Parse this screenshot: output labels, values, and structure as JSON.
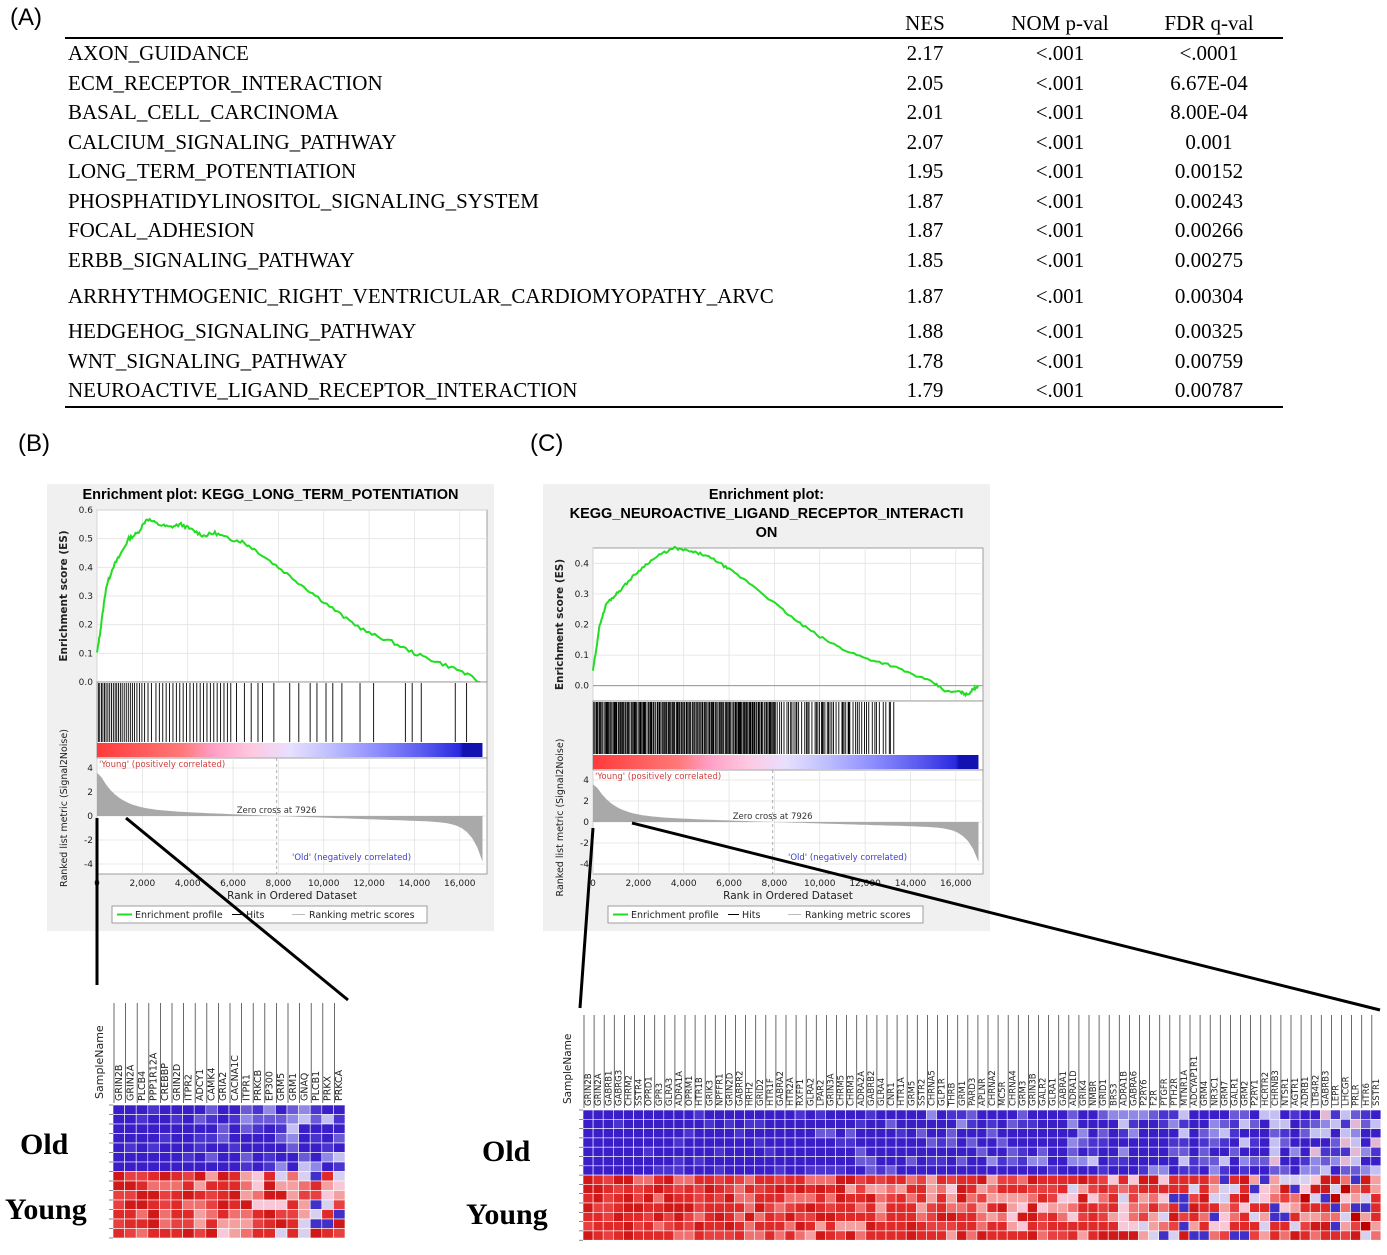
{
  "labels": {
    "a": "(A)",
    "b": "(B)",
    "c": "(C)"
  },
  "table": {
    "headers": [
      "",
      "NES",
      "NOM p-val",
      "FDR q-val"
    ],
    "rows": [
      [
        "AXON_GUIDANCE",
        "2.17",
        "<.001",
        "<.0001"
      ],
      [
        "ECM_RECEPTOR_INTERACTION",
        "2.05",
        "<.001",
        "6.67E-04"
      ],
      [
        "BASAL_CELL_CARCINOMA",
        "2.01",
        "<.001",
        "8.00E-04"
      ],
      [
        "CALCIUM_SIGNALING_PATHWAY",
        "2.07",
        "<.001",
        "0.001"
      ],
      [
        "LONG_TERM_POTENTIATION",
        "1.95",
        "<.001",
        "0.00152"
      ],
      [
        "PHOSPHATIDYLINOSITOL_SIGNALING_SYSTEM",
        "1.87",
        "<.001",
        "0.00243"
      ],
      [
        "FOCAL_ADHESION",
        "1.87",
        "<.001",
        "0.00266"
      ],
      [
        "ERBB_SIGNALING_PATHWAY",
        "1.85",
        "<.001",
        "0.00275"
      ],
      [
        "ARRHYTHMOGENIC_RIGHT_VENTRICULAR_CARDIOMYOPATHY_ARVC",
        "1.87",
        "<.001",
        "0.00304"
      ],
      [
        "HEDGEHOG_SIGNALING_PATHWAY",
        "1.88",
        "<.001",
        "0.00325"
      ],
      [
        "WNT_SIGNALING_PATHWAY",
        "1.78",
        "<.001",
        "0.00759"
      ],
      [
        "NEUROACTIVE_LIGAND_RECEPTOR_INTERACTION",
        "1.79",
        "<.001",
        "0.00787"
      ]
    ]
  },
  "chart_data": [
    {
      "type": "line",
      "title": "Enrichment plot: KEGG_LONG_TERM_POTENTIATION",
      "ylabel": "Enrichment score (ES)",
      "ylim": [
        0,
        0.6
      ],
      "yticks": [
        "0.6",
        "0.5",
        "0.4",
        "0.3",
        "0.2",
        "0.1",
        "0.0"
      ],
      "xlabel": "Rank in Ordered Dataset",
      "xlim": [
        0,
        17200
      ],
      "xticks": [
        "0",
        "2,000",
        "4,000",
        "6,000",
        "8,000",
        "10,000",
        "12,000",
        "14,000",
        "16,000"
      ],
      "x": [
        0,
        150,
        400,
        700,
        1000,
        1400,
        1800,
        2200,
        2700,
        3200,
        3700,
        4200,
        4700,
        5200,
        5800,
        6400,
        7000,
        8000,
        9000,
        10000,
        11000,
        12000,
        13000,
        14000,
        15000,
        16000,
        16900
      ],
      "y": [
        0.1,
        0.18,
        0.33,
        0.4,
        0.44,
        0.5,
        0.52,
        0.57,
        0.55,
        0.54,
        0.55,
        0.53,
        0.51,
        0.52,
        0.5,
        0.49,
        0.46,
        0.4,
        0.34,
        0.28,
        0.22,
        0.17,
        0.14,
        0.1,
        0.07,
        0.04,
        0.0
      ],
      "hits": [
        60,
        120,
        200,
        260,
        330,
        400,
        480,
        560,
        640,
        720,
        800,
        870,
        950,
        1030,
        1110,
        1200,
        1290,
        1380,
        1470,
        1560,
        1650,
        1760,
        1870,
        1980,
        2100,
        2250,
        2400,
        2600,
        2750,
        2900,
        3050,
        3200,
        3350,
        3500,
        3650,
        3800,
        3950,
        4100,
        4250,
        4400,
        4550,
        4700,
        4850,
        5000,
        5150,
        5300,
        5450,
        5600,
        5750,
        5900,
        6150,
        6500,
        6800,
        7100,
        7300,
        7800,
        8500,
        8900,
        9400,
        9700,
        10100,
        10400,
        10800,
        11600,
        12200,
        13600,
        13900,
        14300,
        15800,
        16300
      ],
      "ranked_ylabel": "Ranked list metric (Signal2Noise)",
      "ranked_yticks": [
        "4",
        "2",
        "0",
        "-2",
        "-4"
      ],
      "zero_cross_label": "Zero cross at 7926",
      "zero_cross": 7926,
      "pos_label": "'Young' (positively correlated)",
      "neg_label": "'Old' (negatively correlated)",
      "legend": [
        "Enrichment profile",
        "Hits",
        "Ranking metric scores"
      ]
    },
    {
      "type": "line",
      "title": "Enrichment plot:\nKEGG_NEUROACTIVE_LIGAND_RECEPTOR_INTERACTI\nON",
      "ylabel": "Enrichment score (ES)",
      "ylim": [
        -0.05,
        0.45
      ],
      "yticks": [
        "0.4",
        "0.3",
        "0.2",
        "0.1",
        "0.0"
      ],
      "xlabel": "Rank in Ordered Dataset",
      "xlim": [
        0,
        17200
      ],
      "xticks": [
        "0",
        "2,000",
        "4,000",
        "6,000",
        "8,000",
        "10,000",
        "12,000",
        "14,000",
        "16,000"
      ],
      "x": [
        0,
        100,
        300,
        600,
        900,
        1300,
        1800,
        2400,
        3000,
        3600,
        4200,
        4800,
        5400,
        6000,
        7000,
        8000,
        9000,
        10000,
        11000,
        12000,
        13000,
        14000,
        15000,
        15600,
        16200,
        16500,
        16800,
        17000
      ],
      "y": [
        0.05,
        0.1,
        0.2,
        0.27,
        0.29,
        0.32,
        0.36,
        0.4,
        0.43,
        0.45,
        0.44,
        0.43,
        0.41,
        0.38,
        0.33,
        0.27,
        0.21,
        0.16,
        0.12,
        0.09,
        0.07,
        0.04,
        0.01,
        -0.02,
        -0.02,
        -0.03,
        -0.01,
        0.0
      ],
      "hits_count": 230,
      "ranked_ylabel": "Ranked list metric (Signal2Noise)",
      "ranked_yticks": [
        "4",
        "2",
        "0",
        "-2",
        "-4"
      ],
      "zero_cross_label": "Zero cross at 7926",
      "zero_cross": 7926,
      "pos_label": "'Young' (positively correlated)",
      "neg_label": "'Old' (negatively correlated)",
      "legend": [
        "Enrichment profile",
        "Hits",
        "Ranking metric scores"
      ]
    }
  ],
  "heatmap_b": {
    "header_label": "SampleName",
    "genes": [
      "GRIN2B",
      "GRIN2A",
      "PLCB4",
      "PPP1R12A",
      "CREBBP",
      "GRIN2D",
      "ITPR2",
      "ADCY1",
      "CAMK4",
      "GRIA2",
      "CACNA1C",
      "ITPR1",
      "PRKCB",
      "EP300",
      "GRM5",
      "GRM1",
      "GNAQ",
      "PLCB1",
      "PRKX",
      "PRKCA"
    ],
    "row_labels": [
      "Old",
      "Young"
    ]
  },
  "heatmap_c": {
    "header_label": "SampleName",
    "genes": [
      "GRIN2B",
      "GRIN2A",
      "GABRB1",
      "GABRG3",
      "CHRM2",
      "SSTR4",
      "OPRD1",
      "GPR3",
      "GLRA3",
      "ADRA1A",
      "OPRM1",
      "HTR1B",
      "GRIK3",
      "NPFFR1",
      "GRIN2D",
      "GABRR2",
      "HRH2",
      "GRID2",
      "HTR1F",
      "GABRA2",
      "HTR2A",
      "RXFP1",
      "GLRA2",
      "LPAR2",
      "GRIN3A",
      "CHRM5",
      "CHRM3",
      "ADRA2A",
      "GABRB2",
      "GLRA4",
      "CNR1",
      "HTR1A",
      "GRM5",
      "SSTR2",
      "CHRNA5",
      "GLP1R",
      "THRB",
      "GRM1",
      "PARD3",
      "APLNR",
      "CHRNA2",
      "MC5R",
      "CHRNA4",
      "GRM3",
      "GRIN3B",
      "GALR2",
      "GLRA1",
      "GABRA1",
      "ADRA1D",
      "GRIK4",
      "NMBR",
      "GRID1",
      "BRS3",
      "ADRA1B",
      "GABRA6",
      "P2RY6",
      "F2R",
      "PTGFR",
      "PTH2R",
      "MTNR1A",
      "ADCYAP1R1",
      "GRM4",
      "NR3C1",
      "GRM7",
      "GALR1",
      "GRM2",
      "P2RY1",
      "HCRTR2",
      "CHRNB3",
      "NTSR1",
      "AGTR1",
      "ADRB1",
      "LTB4R2",
      "GABRB3",
      "LEPR",
      "LHCGR",
      "PRLR",
      "HTR6",
      "SSTR1"
    ],
    "row_labels": [
      "Old",
      "Young"
    ]
  },
  "colors": {
    "es_line": "#22dd22",
    "hit": "#000000",
    "metric": "#a9a9a9",
    "pos_label": "#d04040",
    "neg_label": "#3c3cd0",
    "old_base": "#3a1fc8",
    "young_base": "#e02a2a"
  }
}
